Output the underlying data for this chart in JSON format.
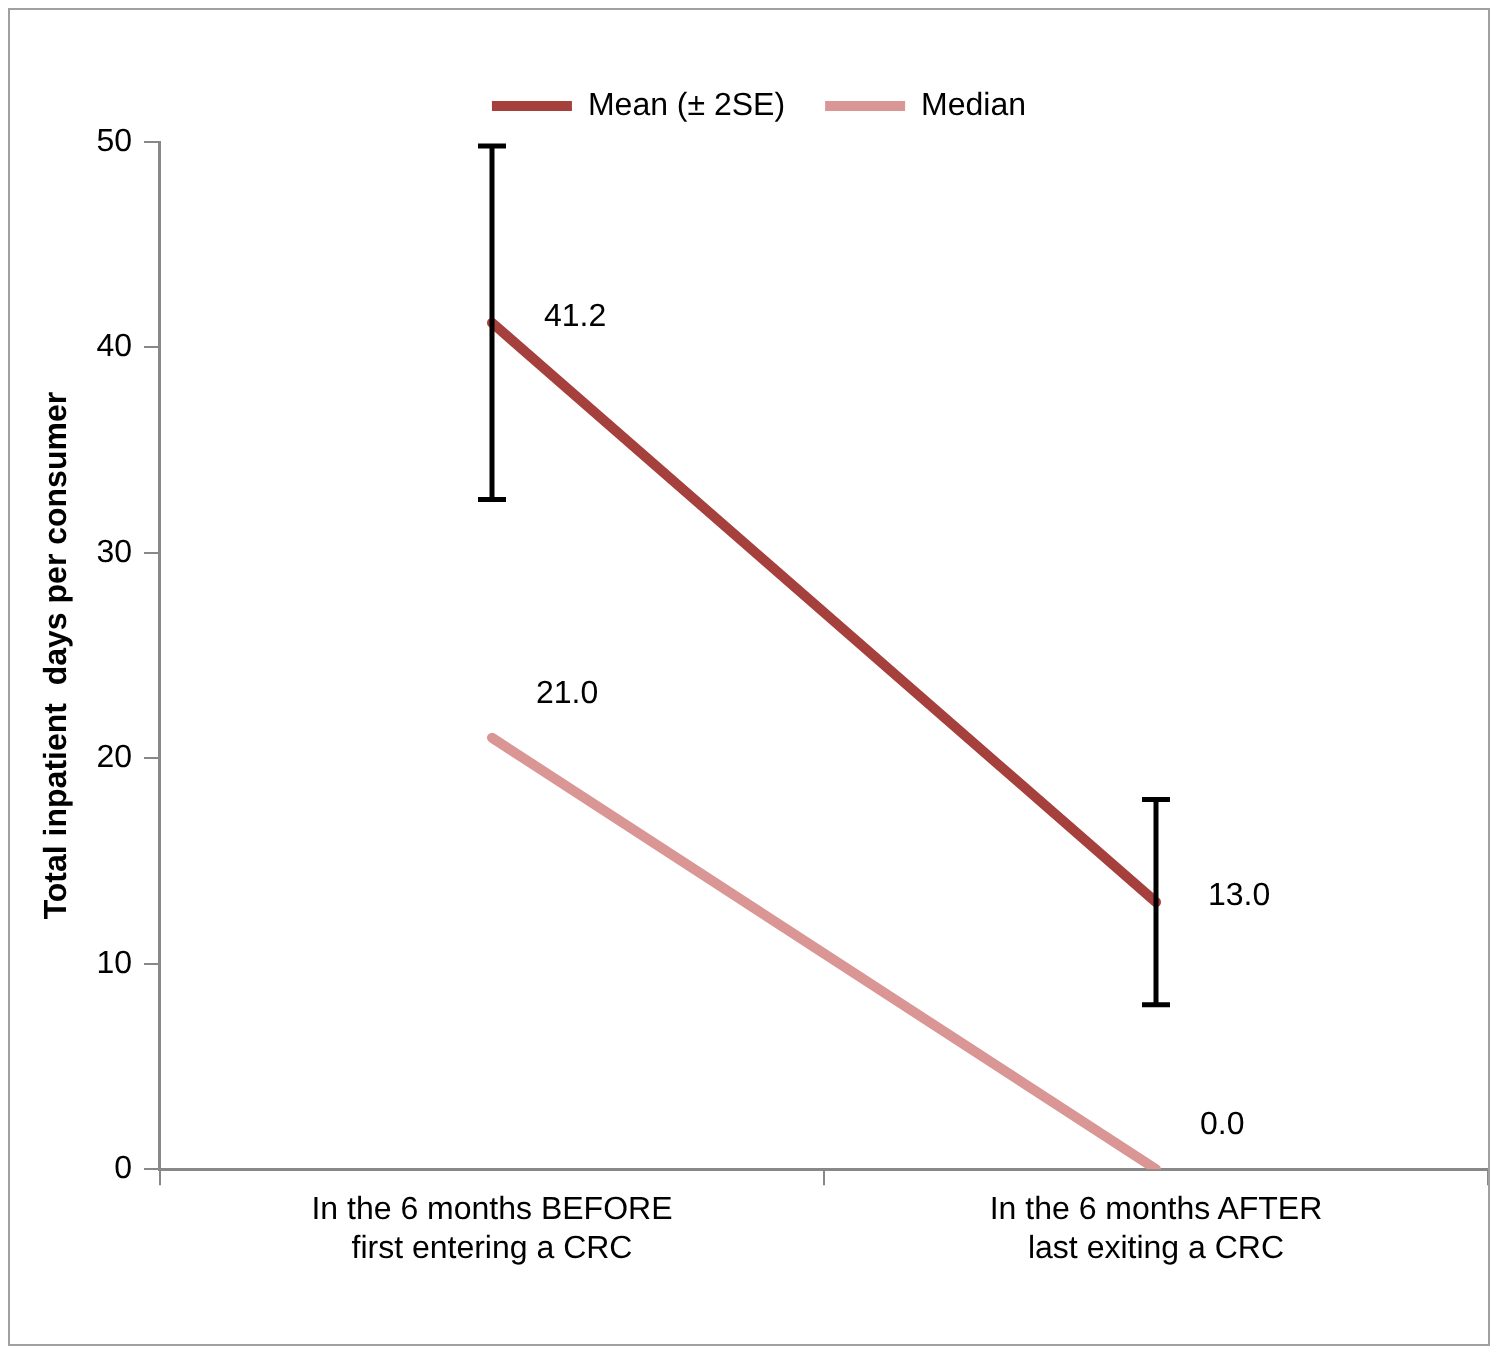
{
  "chart_data": {
    "type": "line",
    "ylabel": "Total inpatient  days per consumer",
    "categories": [
      "In the 6 months BEFORE first entering a CRC",
      "In the 6 months AFTER last exiting a CRC"
    ],
    "series": [
      {
        "name": "Mean (± 2SE)",
        "color": "#a5403d",
        "values": [
          41.2,
          13.0
        ],
        "errors": [
          8.6,
          5.0
        ],
        "value_labels": [
          "41.2",
          "13.0"
        ]
      },
      {
        "name": "Median",
        "color": "#d99694",
        "values": [
          21.0,
          0.0
        ],
        "value_labels": [
          "21.0",
          "0.0"
        ]
      }
    ],
    "ylim": [
      0,
      50
    ],
    "yticks": [
      0,
      10,
      20,
      30,
      40,
      50
    ],
    "grid": false,
    "legend": "top",
    "marker": "none",
    "line_style": "solid"
  }
}
